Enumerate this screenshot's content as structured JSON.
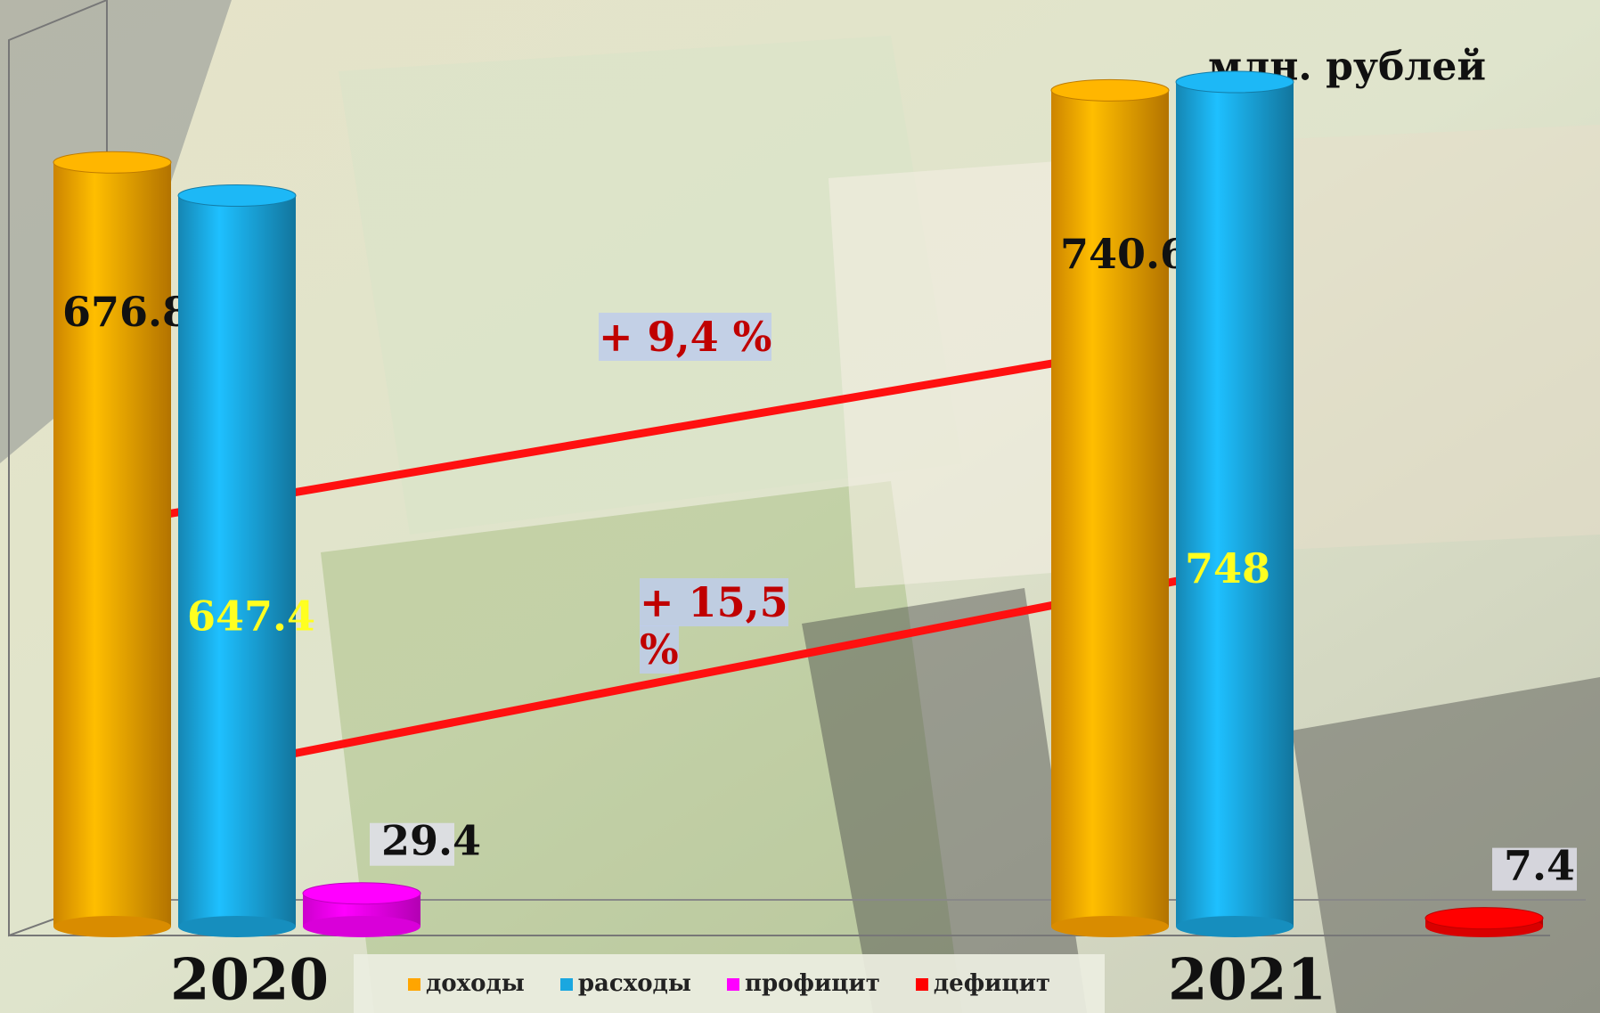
{
  "chart_data": {
    "type": "bar3d",
    "unit_label": "млн. рублей",
    "categories": [
      "2020",
      "2021"
    ],
    "series": [
      {
        "name": "доходы",
        "color": "#ffa500",
        "values": [
          676.8,
          740.6
        ]
      },
      {
        "name": "расходы",
        "color": "#1aa7e0",
        "values": [
          647.4,
          748
        ]
      },
      {
        "name": "профицит",
        "color": "#ff00ff",
        "values": [
          29.4,
          null
        ]
      },
      {
        "name": "дефицит",
        "color": "#ff0000",
        "values": [
          null,
          7.4
        ]
      }
    ],
    "annotations": [
      "+ 9,4 %",
      "+ 15,5 %"
    ]
  }
}
